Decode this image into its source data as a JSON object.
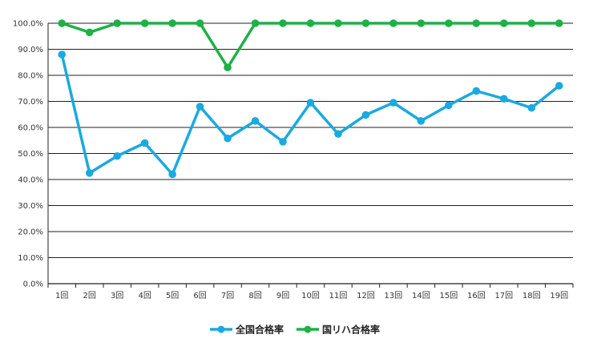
{
  "chart_data": {
    "type": "line",
    "categories": [
      "1回",
      "2回",
      "3回",
      "4回",
      "5回",
      "6回",
      "7回",
      "8回",
      "9回",
      "10回",
      "11回",
      "12回",
      "13回",
      "14回",
      "15回",
      "16回",
      "17回",
      "18回",
      "19回"
    ],
    "series": [
      {
        "name": "全国合格率",
        "color": "#1aa9e0",
        "values": [
          88,
          42.5,
          49,
          54,
          42,
          68,
          55.8,
          62.5,
          54.5,
          69.5,
          57.5,
          64.8,
          69.5,
          62.5,
          68.5,
          74,
          71,
          67.5,
          76
        ]
      },
      {
        "name": "国リハ合格率",
        "color": "#1db146",
        "values": [
          100,
          96.5,
          100,
          100,
          100,
          100,
          83,
          100,
          100,
          100,
          100,
          100,
          100,
          100,
          100,
          100,
          100,
          100,
          100
        ]
      }
    ],
    "y_ticks": [
      "0.0%",
      "10.0%",
      "20.0%",
      "30.0%",
      "40.0%",
      "50.0%",
      "60.0%",
      "70.0%",
      "80.0%",
      "90.0%",
      "100.0%"
    ],
    "ylim": [
      0,
      100
    ],
    "grid": true,
    "legend_position": "bottom"
  }
}
